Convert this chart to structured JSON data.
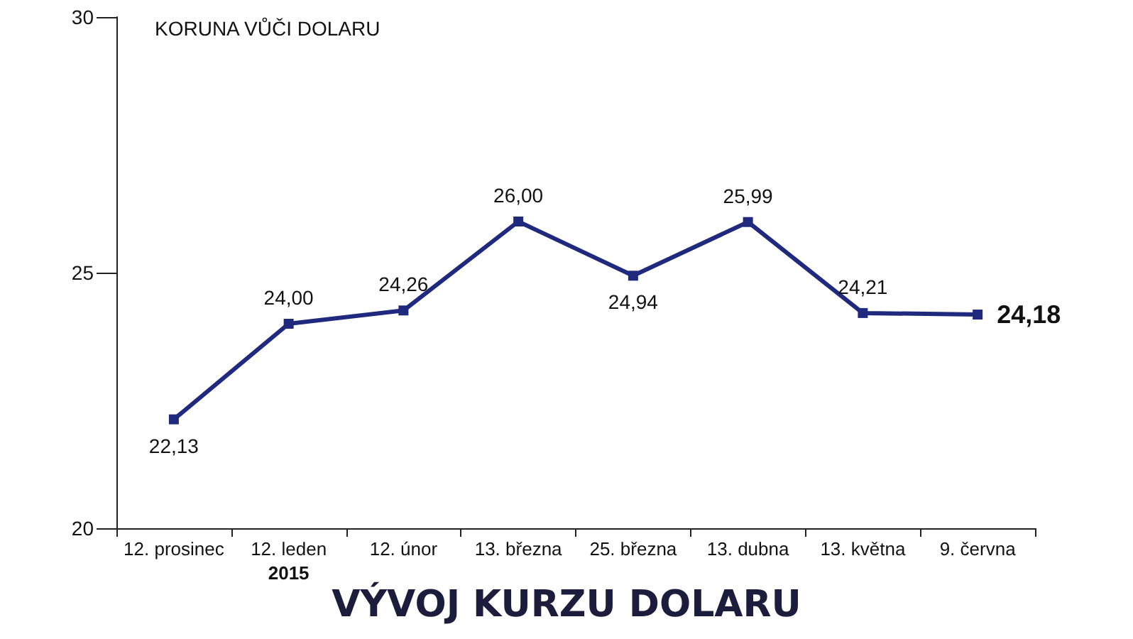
{
  "chart_data": {
    "type": "line",
    "title": "VÝVOJ KURZU DOLARU",
    "ylabel": "KORUNA VŮČI DOLARU",
    "categories": [
      "12. prosinec",
      "12. leden\n2015",
      "12. únor",
      "13. března",
      "25. března",
      "13. dubna",
      "13. května",
      "9. června"
    ],
    "series": [
      {
        "color": "#1f2a7e",
        "values": [
          22.13,
          24.0,
          24.26,
          26.0,
          24.94,
          25.99,
          24.21,
          24.18
        ],
        "value_labels": [
          "22,13",
          "24,00",
          "24,26",
          "26,00",
          "24,94",
          "25,99",
          "24,21",
          "24,18"
        ]
      }
    ],
    "ylim": [
      20,
      30
    ],
    "yticks": [
      20,
      25,
      30
    ],
    "marker": "square",
    "line_style": "solid"
  }
}
